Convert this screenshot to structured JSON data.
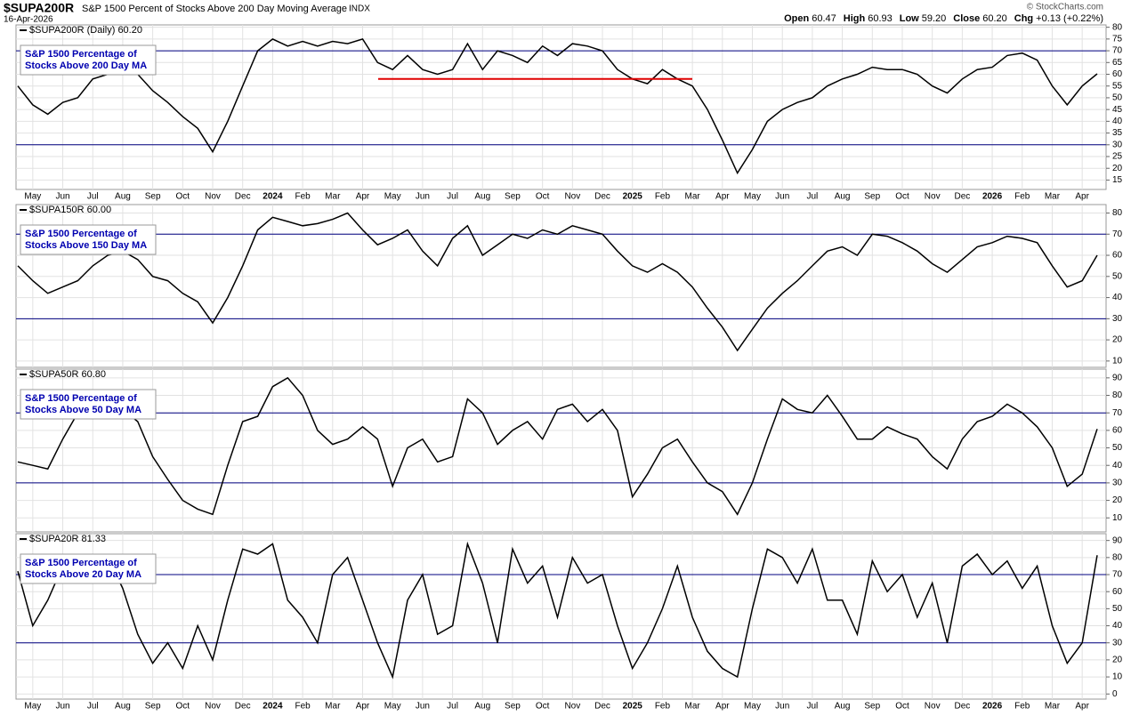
{
  "header": {
    "symbol": "$SUPA200R",
    "name": "S&P 1500 Percent of Stocks Above 200 Day Moving Average",
    "exchange": "INDX",
    "date": "16-Apr-2026",
    "credit": "© StockCharts.com",
    "quote": [
      {
        "label": "Open",
        "value": "60.47"
      },
      {
        "label": "High",
        "value": "60.93"
      },
      {
        "label": "Low",
        "value": "59.20"
      },
      {
        "label": "Close",
        "value": "60.20"
      },
      {
        "label": "Chg",
        "value": "+0.13 (+0.22%)"
      }
    ]
  },
  "chart_data": [
    {
      "type": "line",
      "label": "$SUPA200R (Daily) 60.20",
      "title_lines": [
        "S&P 1500 Percentage of",
        "Stocks Above 200 Day MA"
      ],
      "color": "#000000",
      "categories": [
        null,
        "May",
        null,
        "Jun",
        null,
        "Jul",
        null,
        "Aug",
        null,
        "Sep",
        null,
        "Oct",
        null,
        "Nov",
        null,
        "Dec",
        null,
        "2024",
        null,
        "Feb",
        null,
        "Mar",
        null,
        "Apr",
        null,
        "May",
        null,
        "Jun",
        null,
        "Jul",
        null,
        "Aug",
        null,
        "Sep",
        null,
        "Oct",
        null,
        "Nov",
        null,
        "Dec",
        null,
        "2025",
        null,
        "Feb",
        null,
        "Mar",
        null,
        "Apr",
        null,
        "May",
        null,
        "Jun",
        null,
        "Jul",
        null,
        "Aug",
        null,
        "Sep",
        null,
        "Oct",
        null,
        "Nov",
        null,
        "Dec",
        null,
        "2026",
        null,
        "Feb",
        null,
        "Mar",
        null,
        "Apr",
        null
      ],
      "values": [
        55,
        47,
        43,
        48,
        50,
        58,
        60,
        62,
        60,
        53,
        48,
        42,
        37,
        27,
        40,
        55,
        70,
        75,
        72,
        74,
        72,
        74,
        73,
        75,
        65,
        62,
        68,
        62,
        60,
        62,
        73,
        62,
        70,
        68,
        65,
        72,
        68,
        73,
        72,
        70,
        62,
        58,
        56,
        62,
        58,
        55,
        45,
        32,
        18,
        28,
        40,
        45,
        48,
        50,
        55,
        58,
        60,
        63,
        62,
        62,
        60,
        55,
        52,
        58,
        62,
        63,
        68,
        69,
        66,
        55,
        47,
        55,
        60.2
      ],
      "ylim": [
        11,
        81
      ],
      "yticks": [
        80,
        75,
        70,
        65,
        60,
        55,
        50,
        45,
        40,
        35,
        30,
        25,
        20,
        15
      ],
      "hlines": [
        70,
        30
      ],
      "hline_color": "#000080",
      "reference_line": {
        "value": 58,
        "color": "#e00000"
      },
      "grid": true
    },
    {
      "type": "line",
      "label": "$SUPA150R 60.00",
      "title_lines": [
        "S&P 1500 Percentage of",
        "Stocks Above 150 Day MA"
      ],
      "color": "#000000",
      "values": [
        55,
        48,
        42,
        45,
        48,
        55,
        60,
        62,
        58,
        50,
        48,
        42,
        38,
        28,
        40,
        55,
        72,
        78,
        76,
        74,
        75,
        77,
        80,
        72,
        65,
        68,
        72,
        62,
        55,
        68,
        74,
        60,
        65,
        70,
        68,
        72,
        70,
        74,
        72,
        70,
        62,
        55,
        52,
        56,
        52,
        45,
        35,
        26,
        15,
        25,
        35,
        42,
        48,
        55,
        62,
        64,
        60,
        70,
        69,
        66,
        62,
        56,
        52,
        58,
        64,
        66,
        69,
        68,
        66,
        55,
        45,
        48,
        60
      ],
      "ylim": [
        7,
        84
      ],
      "yticks": [
        80,
        70,
        60,
        50,
        40,
        30,
        20,
        10
      ],
      "hlines": [
        70,
        30
      ],
      "hline_color": "#000080",
      "grid": true
    },
    {
      "type": "line",
      "label": "$SUPA50R 60.80",
      "title_lines": [
        "S&P 1500 Percentage of",
        "Stocks Above 50 Day MA"
      ],
      "color": "#000000",
      "values": [
        42,
        40,
        38,
        55,
        70,
        68,
        72,
        72,
        65,
        45,
        32,
        20,
        15,
        12,
        40,
        65,
        68,
        85,
        90,
        80,
        60,
        52,
        55,
        62,
        55,
        28,
        50,
        55,
        42,
        45,
        78,
        70,
        52,
        60,
        65,
        55,
        72,
        75,
        65,
        72,
        60,
        22,
        35,
        50,
        55,
        42,
        30,
        25,
        12,
        30,
        55,
        78,
        72,
        70,
        80,
        68,
        55,
        55,
        62,
        58,
        55,
        45,
        38,
        55,
        65,
        68,
        75,
        70,
        62,
        50,
        28,
        35,
        60.8
      ],
      "ylim": [
        2,
        95
      ],
      "yticks": [
        90,
        80,
        70,
        60,
        50,
        40,
        30,
        20,
        10
      ],
      "hlines": [
        70,
        30
      ],
      "hline_color": "#000080",
      "grid": true
    },
    {
      "type": "line",
      "label": "$SUPA20R 81.33",
      "title_lines": [
        "S&P 1500 Percentage of",
        "Stocks Above 20 Day MA"
      ],
      "color": "#000000",
      "categories": [
        null,
        "May",
        null,
        "Jun",
        null,
        "Jul",
        null,
        "Aug",
        null,
        "Sep",
        null,
        "Oct",
        null,
        "Nov",
        null,
        "Dec",
        null,
        "2024",
        null,
        "Feb",
        null,
        "Mar",
        null,
        "Apr",
        null,
        "May",
        null,
        "Jun",
        null,
        "Jul",
        null,
        "Aug",
        null,
        "Sep",
        null,
        "Oct",
        null,
        "Nov",
        null,
        "Dec",
        null,
        "2025",
        null,
        "Feb",
        null,
        "Mar",
        null,
        "Apr",
        null,
        "May",
        null,
        "Jun",
        null,
        "Jul",
        null,
        "Aug",
        null,
        "Sep",
        null,
        "Oct",
        null,
        "Nov",
        null,
        "Dec",
        null,
        "2026",
        null,
        "Feb",
        null,
        "Mar",
        null,
        "Apr",
        null
      ],
      "values": [
        72,
        40,
        55,
        75,
        80,
        72,
        80,
        62,
        35,
        18,
        30,
        15,
        40,
        20,
        55,
        85,
        82,
        88,
        55,
        45,
        30,
        70,
        80,
        55,
        30,
        10,
        55,
        70,
        35,
        40,
        88,
        65,
        30,
        85,
        65,
        75,
        45,
        80,
        65,
        70,
        40,
        15,
        30,
        50,
        75,
        45,
        25,
        15,
        10,
        50,
        85,
        80,
        65,
        85,
        55,
        55,
        35,
        78,
        60,
        70,
        45,
        65,
        30,
        75,
        82,
        70,
        78,
        62,
        75,
        40,
        18,
        30,
        81.33
      ],
      "ylim": [
        -3,
        94
      ],
      "yticks": [
        90,
        80,
        70,
        60,
        50,
        40,
        30,
        20,
        10,
        0
      ],
      "hlines": [
        70,
        30
      ],
      "hline_color": "#000080",
      "grid": true
    }
  ]
}
